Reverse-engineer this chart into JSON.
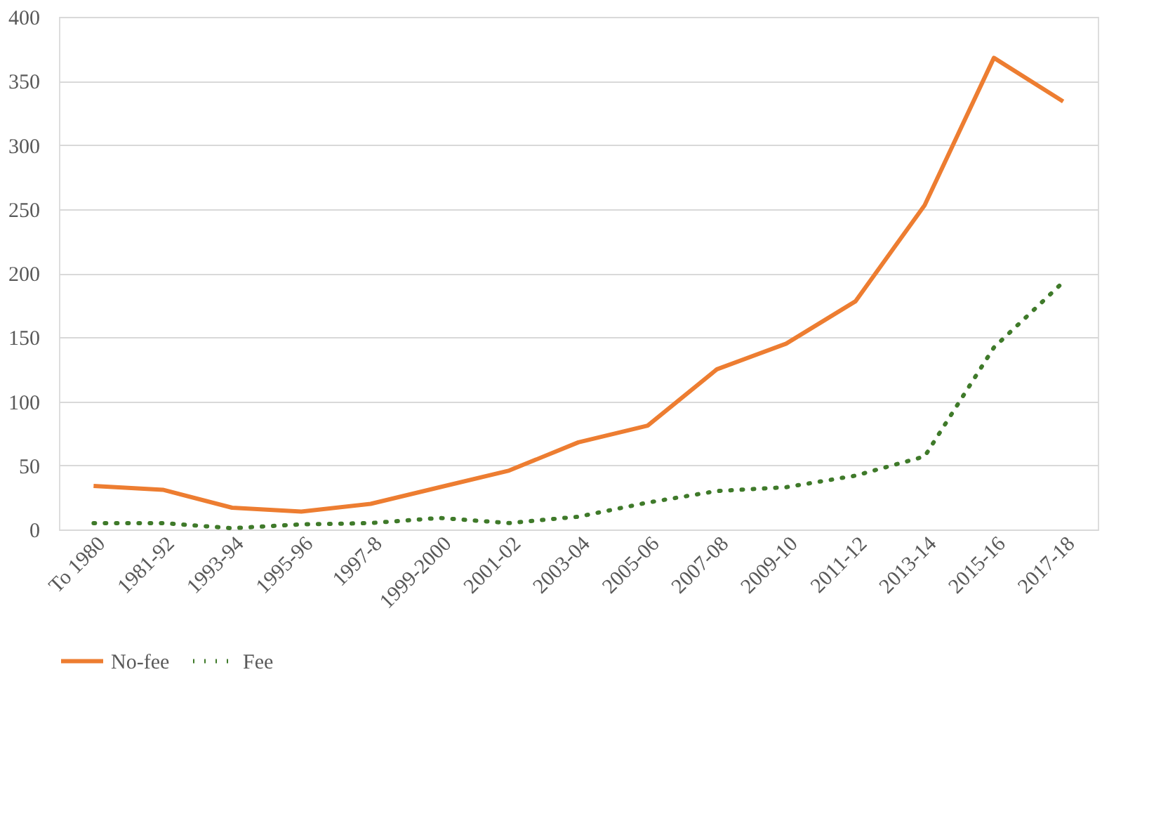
{
  "chart_data": {
    "type": "line",
    "categories": [
      "To 1980",
      "1981-92",
      "1993-94",
      "1995-96",
      "1997-8",
      "1999-2000",
      "2001-02",
      "2003-04",
      "2005-06",
      "2007-08",
      "2009-10",
      "2011-12",
      "2013-14",
      "2015-16",
      "2017-18"
    ],
    "series": [
      {
        "name": "No-fee",
        "color": "#ed7d31",
        "line_style": "solid",
        "values": [
          34,
          31,
          17,
          14,
          20,
          33,
          46,
          68,
          81,
          125,
          145,
          178,
          253,
          368,
          334
        ]
      },
      {
        "name": "Fee",
        "color": "#3f7a2a",
        "line_style": "dotted",
        "values": [
          5,
          5,
          1,
          4,
          5,
          9,
          5,
          10,
          21,
          30,
          33,
          42,
          57,
          142,
          193
        ]
      }
    ],
    "ylim": [
      0,
      400
    ],
    "yticks": [
      0,
      50,
      100,
      150,
      200,
      250,
      300,
      350,
      400
    ],
    "grid": "y",
    "legend": "bottom",
    "marker": "none"
  }
}
